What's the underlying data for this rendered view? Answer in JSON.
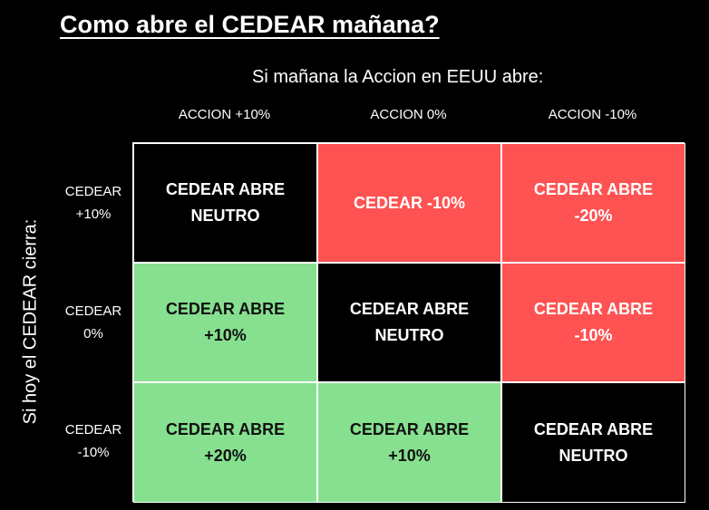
{
  "title": "Como abre el CEDEAR mañana?",
  "top_caption": "Si mañana la Accion en EEUU abre:",
  "side_caption": "Si hoy el CEDEAR cierra:",
  "columns": [
    "ACCION +10%",
    "ACCION 0%",
    "ACCION -10%"
  ],
  "rows": [
    "CEDEAR\n+10%",
    "CEDEAR\n0%",
    "CEDEAR\n-10%"
  ],
  "cells": [
    [
      "CEDEAR ABRE\nNEUTRO",
      "CEDEAR -10%",
      "CEDEAR ABRE\n-20%"
    ],
    [
      "CEDEAR ABRE\n+10%",
      "CEDEAR ABRE\nNEUTRO",
      "CEDEAR ABRE\n-10%"
    ],
    [
      "CEDEAR ABRE\n+20%",
      "CEDEAR ABRE\n+10%",
      "CEDEAR ABRE\nNEUTRO"
    ]
  ],
  "colors": {
    "background": "#000000",
    "negative": "#ff5252",
    "positive": "#86e08f",
    "neutral": "#000000"
  }
}
